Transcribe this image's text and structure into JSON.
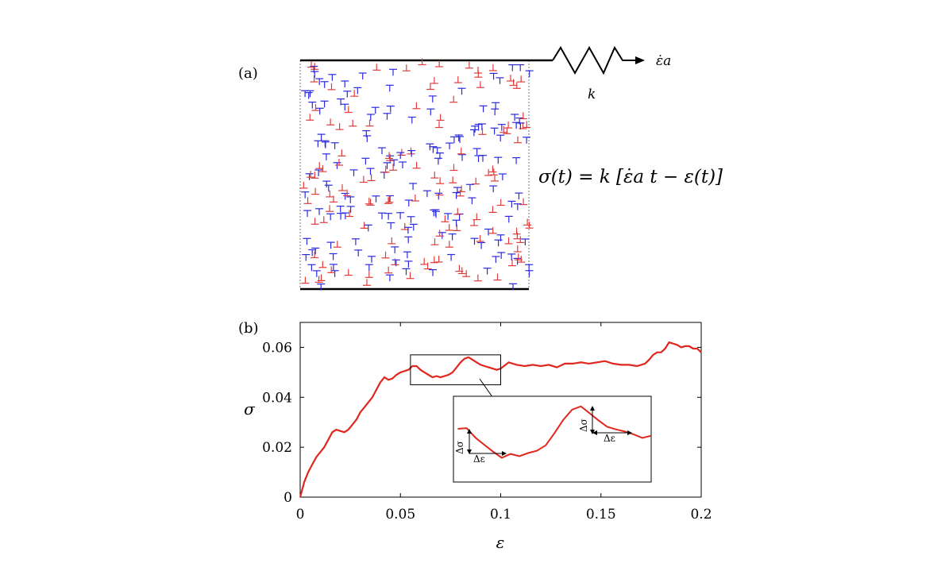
{
  "figure": {
    "panel_a_label": "(a)",
    "panel_b_label": "(b)",
    "spring_label": "k",
    "strain_rate_label": "ε̇a",
    "equation": "σ(t) = k [ε̇a t − ε(t)]",
    "dislocation_colors": {
      "positive": "#2a2ae0",
      "negative": "#e03c3c"
    }
  },
  "chart_data": {
    "type": "line",
    "xlabel": "ε",
    "ylabel": "σ",
    "xlim": [
      0,
      0.2
    ],
    "ylim": [
      0,
      0.07
    ],
    "xticks": [
      0,
      0.05,
      0.1,
      0.15,
      0.2
    ],
    "xtick_labels": [
      "0",
      "0.05",
      "0.1",
      "0.15",
      "0.2"
    ],
    "yticks": [
      0,
      0.02,
      0.04,
      0.06
    ],
    "ytick_labels": [
      "0",
      "0.02",
      "0.04",
      "0.06"
    ],
    "line_color": "#e0261e",
    "grid": false,
    "series": [
      {
        "x": [
          0,
          0.002,
          0.004,
          0.006,
          0.008,
          0.01,
          0.012,
          0.014,
          0.016,
          0.018,
          0.02,
          0.022,
          0.024,
          0.026,
          0.028,
          0.03,
          0.032,
          0.034,
          0.036,
          0.038,
          0.04,
          0.042,
          0.044,
          0.046,
          0.048,
          0.05,
          0.052,
          0.054,
          0.056,
          0.058,
          0.06,
          0.062,
          0.064,
          0.066,
          0.068,
          0.07,
          0.072,
          0.074,
          0.076,
          0.078,
          0.08,
          0.082,
          0.084,
          0.086,
          0.088,
          0.09,
          0.092,
          0.094,
          0.096,
          0.098,
          0.1,
          0.104,
          0.108,
          0.112,
          0.116,
          0.12,
          0.124,
          0.128,
          0.132,
          0.136,
          0.14,
          0.144,
          0.148,
          0.152,
          0.156,
          0.16,
          0.164,
          0.168,
          0.172,
          0.174,
          0.176,
          0.178,
          0.18,
          0.182,
          0.184,
          0.186,
          0.188,
          0.19,
          0.192,
          0.194,
          0.196,
          0.198,
          0.2
        ],
        "y": [
          0,
          0.006,
          0.01,
          0.013,
          0.016,
          0.018,
          0.02,
          0.023,
          0.026,
          0.027,
          0.0265,
          0.026,
          0.027,
          0.029,
          0.031,
          0.034,
          0.036,
          0.038,
          0.04,
          0.043,
          0.046,
          0.048,
          0.047,
          0.0475,
          0.049,
          0.05,
          0.0505,
          0.051,
          0.0525,
          0.0525,
          0.051,
          0.05,
          0.049,
          0.048,
          0.0485,
          0.048,
          0.0485,
          0.049,
          0.05,
          0.052,
          0.054,
          0.0555,
          0.056,
          0.055,
          0.054,
          0.053,
          0.0525,
          0.052,
          0.0515,
          0.051,
          0.0515,
          0.054,
          0.053,
          0.0525,
          0.053,
          0.0525,
          0.053,
          0.052,
          0.0535,
          0.0535,
          0.054,
          0.0535,
          0.054,
          0.0545,
          0.0535,
          0.053,
          0.053,
          0.0525,
          0.0535,
          0.055,
          0.057,
          0.058,
          0.058,
          0.0595,
          0.062,
          0.0615,
          0.061,
          0.06,
          0.0605,
          0.0605,
          0.0595,
          0.0595,
          0.058
        ]
      }
    ],
    "inset": {
      "zoom_x_range": [
        0.055,
        0.1
      ],
      "zoom_y_range": [
        0.045,
        0.057
      ],
      "annotations": [
        "Δσ",
        "Δε",
        "Δσ",
        "Δε"
      ]
    }
  }
}
